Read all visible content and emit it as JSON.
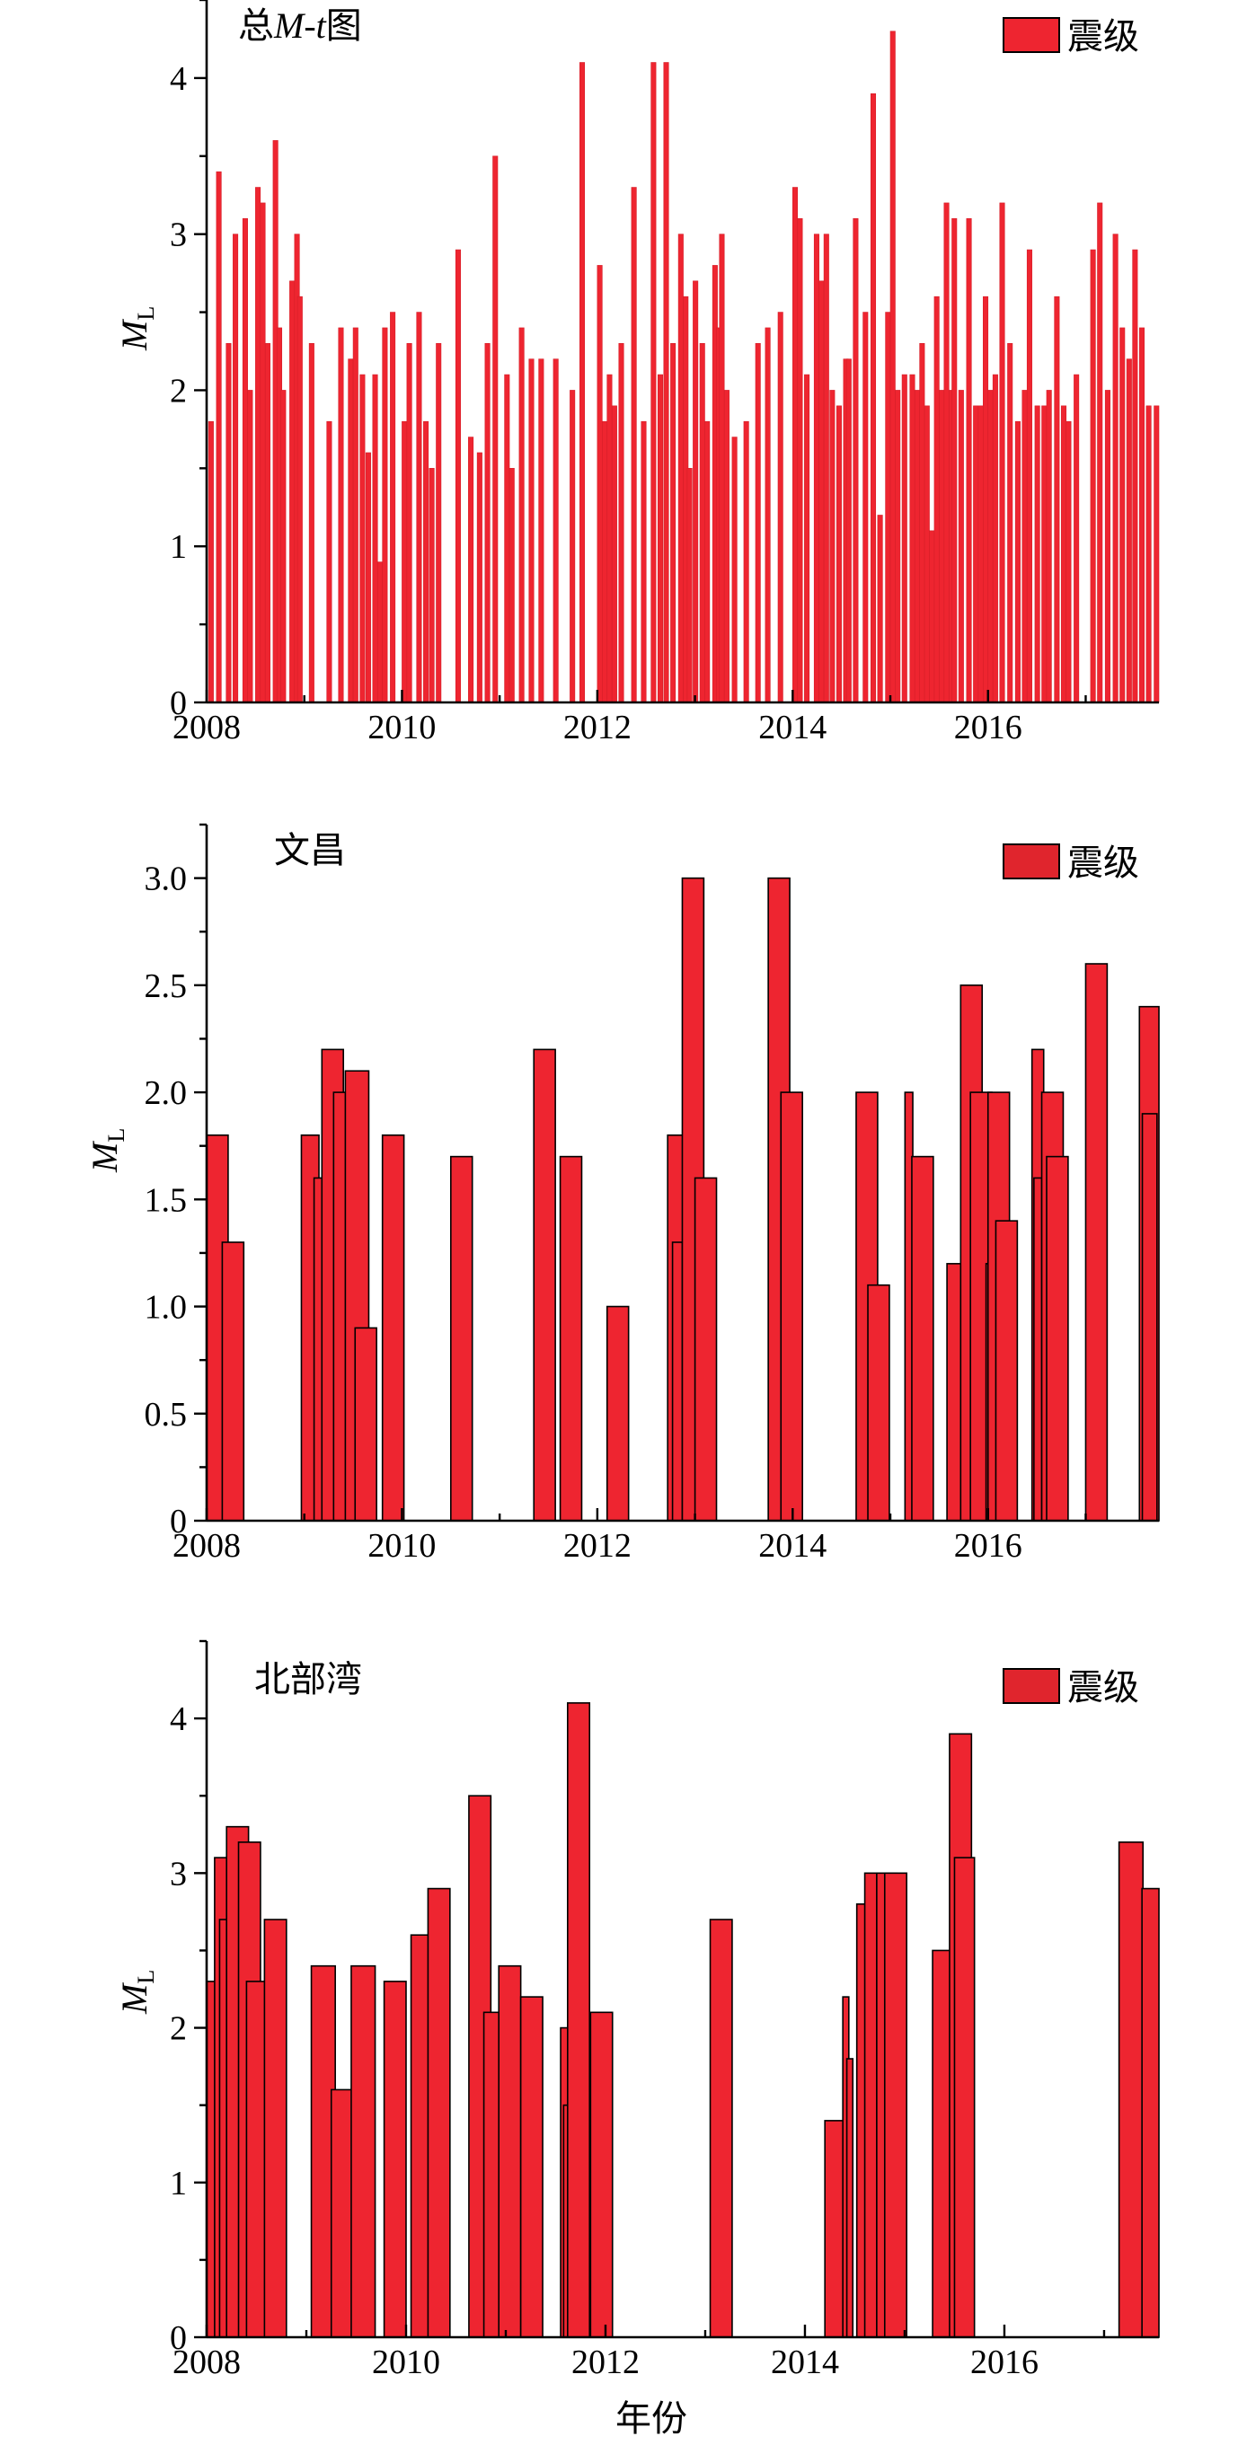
{
  "figure": {
    "xlabel": "年份"
  },
  "chart_data": [
    {
      "type": "bar",
      "title": "总M-t图",
      "title_parts": {
        "pre": "总",
        "m": "M",
        "dash": "-",
        "t": "t",
        "post": "图"
      },
      "ylabel": "M",
      "ylabel_sub": "L",
      "xlim": [
        2008,
        2017.75
      ],
      "ylim": [
        0,
        4.5
      ],
      "xticks": [
        2008,
        2010,
        2012,
        2014,
        2016
      ],
      "yticks": [
        0,
        1,
        2,
        3,
        4
      ],
      "ytick_labels": [
        "0",
        "1",
        "2",
        "3",
        "4"
      ],
      "legend": {
        "label": "震级",
        "position": "top-right"
      },
      "bar_color": "#EE2530",
      "bar_width_years": 0.05,
      "series": [
        {
          "x": [
            2008.02,
            2008.1,
            2008.2,
            2008.27,
            2008.37,
            2008.42,
            2008.5,
            2008.55,
            2008.6,
            2008.68,
            2008.72,
            2008.76,
            2008.85,
            2008.9,
            2008.93,
            2009.05,
            2009.23,
            2009.35,
            2009.45,
            2009.5,
            2009.57,
            2009.63,
            2009.7,
            2009.75,
            2009.8,
            2009.88,
            2010.0,
            2010.05,
            2010.15,
            2010.22,
            2010.28,
            2010.35,
            2010.55,
            2010.68,
            2010.77,
            2010.85,
            2010.93,
            2011.05,
            2011.1,
            2011.2,
            2011.3,
            2011.4,
            2011.55,
            2011.72,
            2011.82,
            2012.0,
            2012.05,
            2012.1,
            2012.15,
            2012.22,
            2012.35,
            2012.45,
            2012.55,
            2012.62,
            2012.68,
            2012.75,
            2012.83,
            2012.88,
            2012.92,
            2012.98,
            2013.05,
            2013.1,
            2013.18,
            2013.22,
            2013.25,
            2013.3,
            2013.38,
            2013.5,
            2013.62,
            2013.72,
            2013.85,
            2014.0,
            2014.05,
            2014.12,
            2014.22,
            2014.27,
            2014.32,
            2014.38,
            2014.45,
            2014.52,
            2014.55,
            2014.62,
            2014.72,
            2014.8,
            2014.87,
            2014.95,
            2015.0,
            2015.05,
            2015.12,
            2015.2,
            2015.25,
            2015.3,
            2015.35,
            2015.4,
            2015.45,
            2015.5,
            2015.55,
            2015.6,
            2015.63,
            2015.7,
            2015.78,
            2015.85,
            2015.9,
            2015.95,
            2016.0,
            2016.05,
            2016.12,
            2016.2,
            2016.28,
            2016.35,
            2016.4,
            2016.48,
            2016.55,
            2016.6,
            2016.68,
            2016.75,
            2016.8,
            2016.88,
            2017.05,
            2017.12,
            2017.2,
            2017.28,
            2017.35,
            2017.42,
            2017.48,
            2017.55,
            2017.62,
            2017.7
          ],
          "values": [
            1.8,
            3.4,
            2.3,
            3.0,
            3.1,
            2.0,
            3.3,
            3.2,
            2.3,
            3.6,
            2.4,
            2.0,
            2.7,
            3.0,
            2.6,
            2.3,
            1.8,
            2.4,
            2.2,
            2.4,
            2.1,
            1.6,
            2.1,
            0.9,
            2.4,
            2.5,
            1.8,
            2.3,
            2.5,
            1.8,
            1.5,
            2.3,
            2.9,
            1.7,
            1.6,
            2.3,
            3.5,
            2.1,
            1.5,
            2.4,
            2.2,
            2.2,
            2.2,
            2.0,
            4.1,
            2.8,
            1.8,
            2.1,
            1.9,
            2.3,
            3.3,
            1.8,
            4.1,
            2.1,
            4.1,
            2.3,
            3.0,
            2.6,
            1.5,
            2.7,
            2.3,
            1.8,
            2.8,
            2.4,
            3.0,
            2.0,
            1.7,
            1.8,
            2.3,
            2.4,
            2.5,
            3.3,
            3.1,
            2.1,
            3.0,
            2.7,
            3.0,
            2.0,
            1.9,
            2.2,
            2.2,
            3.1,
            2.5,
            3.9,
            1.2,
            2.5,
            4.3,
            2.0,
            2.1,
            2.1,
            2.0,
            2.3,
            1.9,
            1.1,
            2.6,
            2.0,
            3.2,
            2.0,
            3.1,
            2.0,
            3.1,
            1.9,
            1.9,
            2.6,
            2.0,
            2.1,
            3.2,
            2.3,
            1.8,
            2.0,
            2.9,
            1.9,
            1.9,
            2.0,
            2.6,
            1.9,
            1.8,
            2.1,
            2.9,
            3.2,
            2.0,
            3.0,
            2.4,
            2.2,
            2.9,
            2.4,
            1.9,
            1.9
          ]
        }
      ]
    },
    {
      "type": "bar",
      "title": "文昌",
      "ylabel": "M",
      "ylabel_sub": "L",
      "xlim": [
        2008,
        2017.75
      ],
      "ylim": [
        0,
        3.25
      ],
      "xticks": [
        2008,
        2010,
        2012,
        2014,
        2016
      ],
      "yticks": [
        0,
        0.5,
        1.0,
        1.5,
        2.0,
        2.5,
        3.0
      ],
      "ytick_labels": [
        "0",
        "0.5",
        "1.0",
        "1.5",
        "2.0",
        "2.5",
        "3.0"
      ],
      "legend": {
        "label": "震级",
        "position": "top-right"
      },
      "bar_color": "#EE2530",
      "bar_width_years": 0.22,
      "series": [
        {
          "x": [
            2008.0,
            2008.16,
            2008.97,
            2009.1,
            2009.18,
            2009.3,
            2009.42,
            2009.52,
            2009.8,
            2010.5,
            2011.35,
            2011.62,
            2012.1,
            2012.72,
            2012.77,
            2012.87,
            2013.0,
            2013.75,
            2013.88,
            2014.65,
            2014.77,
            2015.15,
            2015.22,
            2015.58,
            2015.72,
            2015.82,
            2015.98,
            2016.0,
            2016.08,
            2016.45,
            2016.47,
            2016.55,
            2016.6,
            2017.0,
            2017.55,
            2017.58
          ],
          "values": [
            1.8,
            1.3,
            1.8,
            1.6,
            2.2,
            2.0,
            2.1,
            0.9,
            1.8,
            1.7,
            2.2,
            1.7,
            1.0,
            1.8,
            1.3,
            3.0,
            1.6,
            3.0,
            2.0,
            2.0,
            1.1,
            2.0,
            1.7,
            1.2,
            2.5,
            2.0,
            1.2,
            2.0,
            1.4,
            2.2,
            1.6,
            2.0,
            1.7,
            2.6,
            2.4,
            1.9
          ],
          "widths": [
            0.22,
            0.22,
            0.18,
            0.08,
            0.22,
            0.16,
            0.24,
            0.22,
            0.22,
            0.22,
            0.22,
            0.22,
            0.22,
            0.18,
            0.1,
            0.22,
            0.22,
            0.22,
            0.22,
            0.22,
            0.22,
            0.08,
            0.22,
            0.16,
            0.22,
            0.22,
            0.16,
            0.22,
            0.22,
            0.12,
            0.08,
            0.22,
            0.22,
            0.22,
            0.2,
            0.15
          ]
        }
      ]
    },
    {
      "type": "bar",
      "title": "北部湾",
      "ylabel": "M",
      "ylabel_sub": "L",
      "xlim": [
        2008,
        2017.55
      ],
      "ylim": [
        0,
        4.5
      ],
      "xticks": [
        2008,
        2010,
        2012,
        2014,
        2016
      ],
      "yticks": [
        0,
        1,
        2,
        3,
        4
      ],
      "ytick_labels": [
        "0",
        "1",
        "2",
        "3",
        "4"
      ],
      "legend": {
        "label": "震级",
        "position": "top-right"
      },
      "bar_color": "#EE2530",
      "bar_width_years": 0.22,
      "series": [
        {
          "x": [
            2007.98,
            2008.08,
            2008.13,
            2008.2,
            2008.32,
            2008.4,
            2008.58,
            2009.05,
            2009.25,
            2009.45,
            2009.78,
            2010.05,
            2010.22,
            2010.63,
            2010.78,
            2010.93,
            2011.15,
            2011.55,
            2011.58,
            2011.62,
            2011.85,
            2013.05,
            2014.2,
            2014.38,
            2014.42,
            2014.52,
            2014.6,
            2014.72,
            2014.8,
            2015.28,
            2015.45,
            2015.5,
            2017.15,
            2017.38
          ],
          "values": [
            2.3,
            3.1,
            2.7,
            3.3,
            3.2,
            2.3,
            2.7,
            2.4,
            1.6,
            2.4,
            2.3,
            2.6,
            2.9,
            3.5,
            2.1,
            2.4,
            2.2,
            2.0,
            1.5,
            4.1,
            2.1,
            2.7,
            1.4,
            2.2,
            1.8,
            2.8,
            3.0,
            3.0,
            3.0,
            2.5,
            3.9,
            3.1,
            3.2,
            2.9
          ],
          "widths": [
            0.12,
            0.22,
            0.08,
            0.22,
            0.22,
            0.22,
            0.22,
            0.24,
            0.22,
            0.24,
            0.22,
            0.2,
            0.22,
            0.22,
            0.22,
            0.22,
            0.22,
            0.12,
            0.06,
            0.22,
            0.22,
            0.22,
            0.2,
            0.06,
            0.06,
            0.14,
            0.12,
            0.2,
            0.22,
            0.18,
            0.22,
            0.2,
            0.24,
            0.2
          ]
        }
      ]
    }
  ]
}
